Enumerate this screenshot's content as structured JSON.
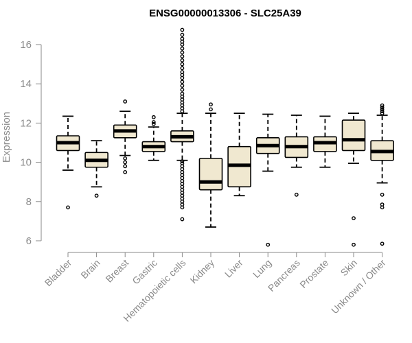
{
  "chart_data": {
    "type": "boxplot",
    "title": "ENSG00000013306 - SLC25A39",
    "ylabel": "Expression",
    "xlabel": "",
    "ylim": [
      5.6,
      16.9
    ],
    "yticks": [
      6,
      8,
      10,
      12,
      14,
      16
    ],
    "box_fill": "#f0e8d0",
    "outlier_color": "#000000",
    "categories": [
      "Bladder",
      "Brain",
      "Breast",
      "Gastric",
      "Hematopoietic cells",
      "Kidney",
      "Liver",
      "Lung",
      "Pancreas",
      "Prostate",
      "Skin",
      "Unknown / Other"
    ],
    "boxes": [
      {
        "whisker_low": 9.6,
        "q1": 10.6,
        "median": 11.0,
        "q3": 11.35,
        "whisker_high": 12.35,
        "outliers": [
          7.7
        ]
      },
      {
        "whisker_low": 8.75,
        "q1": 9.75,
        "median": 10.1,
        "q3": 10.5,
        "whisker_high": 11.1,
        "outliers": [
          8.3
        ]
      },
      {
        "whisker_low": 10.35,
        "q1": 11.25,
        "median": 11.6,
        "q3": 11.9,
        "whisker_high": 12.6,
        "outliers": [
          9.5,
          9.8,
          10.0,
          10.2,
          13.1
        ]
      },
      {
        "whisker_low": 10.1,
        "q1": 10.55,
        "median": 10.8,
        "q3": 11.05,
        "whisker_high": 11.8,
        "outliers": [
          11.95,
          12.05,
          12.3
        ]
      },
      {
        "whisker_low": 10.1,
        "q1": 11.05,
        "median": 11.3,
        "q3": 11.6,
        "whisker_high": 12.5,
        "outliers": [
          7.1,
          7.7,
          7.85,
          8.0,
          8.15,
          8.3,
          8.45,
          8.6,
          8.75,
          8.9,
          9.05,
          9.2,
          9.35,
          9.5,
          9.65,
          9.8,
          9.95,
          10.05,
          12.6,
          12.75,
          12.9,
          13.05,
          13.2,
          13.35,
          13.5,
          13.7,
          13.9,
          14.1,
          14.3,
          14.45,
          14.6,
          14.8,
          15.0,
          15.2,
          15.4,
          15.6,
          15.8,
          16.0,
          16.15,
          16.3,
          16.5,
          16.75
        ]
      },
      {
        "whisker_low": 6.7,
        "q1": 8.6,
        "median": 9.0,
        "q3": 10.2,
        "whisker_high": 12.5,
        "outliers": [
          12.7,
          12.95
        ]
      },
      {
        "whisker_low": 8.3,
        "q1": 8.75,
        "median": 9.85,
        "q3": 10.8,
        "whisker_high": 12.5,
        "outliers": []
      },
      {
        "whisker_low": 9.55,
        "q1": 10.45,
        "median": 10.85,
        "q3": 11.25,
        "whisker_high": 12.45,
        "outliers": [
          5.8
        ]
      },
      {
        "whisker_low": 9.75,
        "q1": 10.25,
        "median": 10.8,
        "q3": 11.3,
        "whisker_high": 12.4,
        "outliers": [
          8.35
        ]
      },
      {
        "whisker_low": 9.75,
        "q1": 10.55,
        "median": 11.0,
        "q3": 11.3,
        "whisker_high": 12.35,
        "outliers": []
      },
      {
        "whisker_low": 9.95,
        "q1": 10.6,
        "median": 11.15,
        "q3": 12.15,
        "whisker_high": 12.5,
        "outliers": [
          5.8,
          7.15
        ]
      },
      {
        "whisker_low": 8.95,
        "q1": 10.1,
        "median": 10.55,
        "q3": 11.1,
        "whisker_high": 12.4,
        "outliers": [
          5.85,
          7.7,
          7.85,
          8.35,
          12.5,
          12.6,
          12.7,
          12.8,
          12.9
        ]
      }
    ]
  }
}
